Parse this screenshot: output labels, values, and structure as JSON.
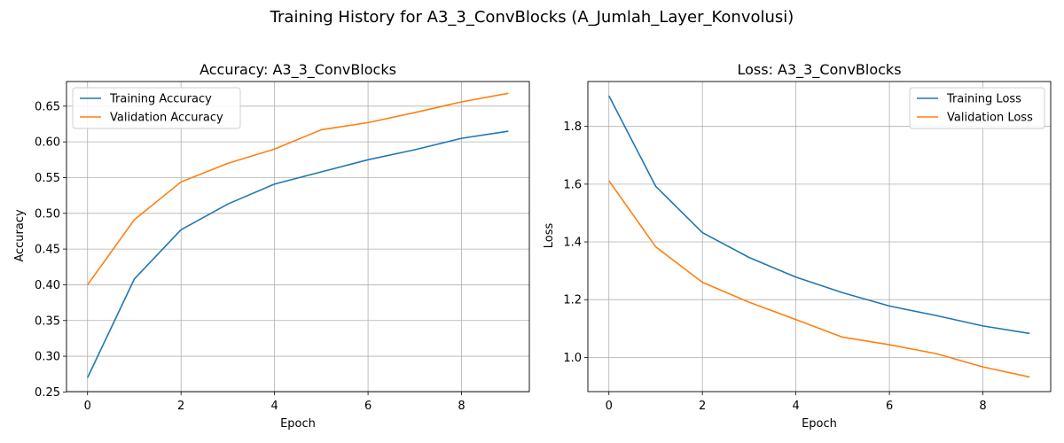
{
  "figure": {
    "suptitle": "Training History for A3_3_ConvBlocks (A_Jumlah_Layer_Konvolusi)"
  },
  "chart_data": [
    {
      "type": "line",
      "title": "Accuracy: A3_3_ConvBlocks",
      "xlabel": "Epoch",
      "ylabel": "Accuracy",
      "x": [
        0,
        1,
        2,
        3,
        4,
        5,
        6,
        7,
        8,
        9
      ],
      "xlim": [
        -0.45,
        9.45
      ],
      "ylim": [
        0.2505,
        0.6845
      ],
      "xticks": [
        0,
        2,
        4,
        6,
        8
      ],
      "yticks": [
        0.25,
        0.3,
        0.35,
        0.4,
        0.45,
        0.5,
        0.55,
        0.6,
        0.65
      ],
      "ytick_labels": [
        "0.25",
        "0.30",
        "0.35",
        "0.40",
        "0.45",
        "0.50",
        "0.55",
        "0.60",
        "0.65"
      ],
      "grid": true,
      "legend_position": "upper-left",
      "series": [
        {
          "name": "Training Accuracy",
          "color": "#1f77b4",
          "values": [
            0.27,
            0.408,
            0.477,
            0.513,
            0.541,
            0.558,
            0.575,
            0.589,
            0.605,
            0.615
          ]
        },
        {
          "name": "Validation Accuracy",
          "color": "#ff7f0e",
          "values": [
            0.4,
            0.491,
            0.544,
            0.57,
            0.59,
            0.617,
            0.627,
            0.641,
            0.656,
            0.668
          ]
        }
      ]
    },
    {
      "type": "line",
      "title": "Loss: A3_3_ConvBlocks",
      "xlabel": "Epoch",
      "ylabel": "Loss",
      "x": [
        0,
        1,
        2,
        3,
        4,
        5,
        6,
        7,
        8,
        9
      ],
      "xlim": [
        -0.45,
        9.45
      ],
      "ylim": [
        0.8815,
        1.9555
      ],
      "xticks": [
        0,
        2,
        4,
        6,
        8
      ],
      "yticks": [
        1.0,
        1.2,
        1.4,
        1.6,
        1.8
      ],
      "ytick_labels": [
        "1.0",
        "1.2",
        "1.4",
        "1.6",
        "1.8"
      ],
      "grid": true,
      "legend_position": "upper-right",
      "series": [
        {
          "name": "Training Loss",
          "color": "#1f77b4",
          "values": [
            1.906,
            1.593,
            1.432,
            1.346,
            1.278,
            1.224,
            1.178,
            1.145,
            1.109,
            1.083
          ]
        },
        {
          "name": "Validation Loss",
          "color": "#ff7f0e",
          "values": [
            1.612,
            1.383,
            1.26,
            1.191,
            1.131,
            1.07,
            1.044,
            1.013,
            0.967,
            0.932
          ]
        }
      ]
    }
  ]
}
